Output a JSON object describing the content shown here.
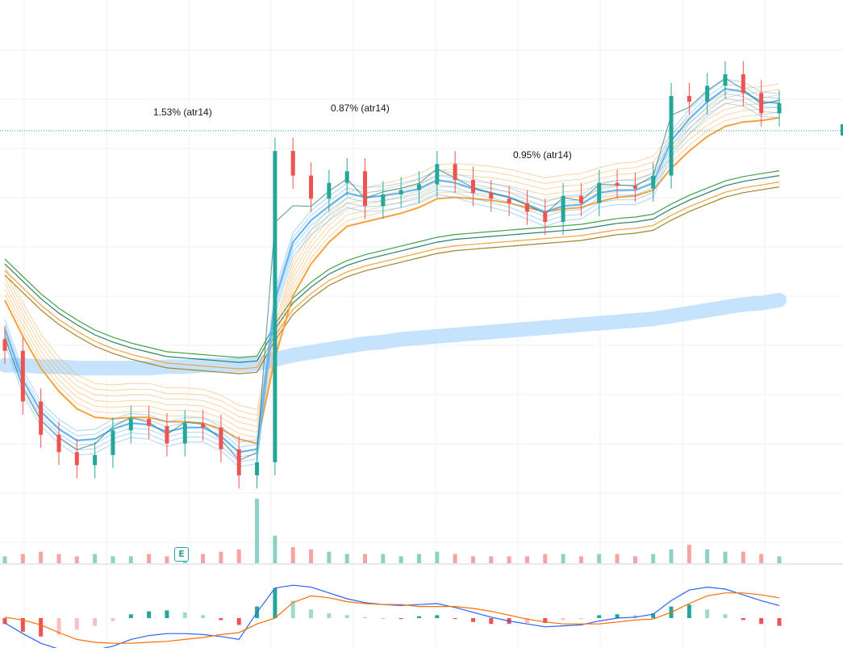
{
  "annotations": [
    {
      "text": "1.53% (atr14)"
    },
    {
      "text": "0.87% (atr14)"
    },
    {
      "text": "0.95% (atr14)"
    }
  ],
  "earnings_badge": "E",
  "colors": {
    "up": "#26a69a",
    "down": "#ef5350",
    "up_volume": "#8fd0c6",
    "down_volume": "#f5a3a3",
    "grid": "#eef0f3",
    "fast_ema": "#64b5f6",
    "slow_ema": "#f5a23c",
    "band": "#bbdefb",
    "macd_line": "#2962ff",
    "signal_line": "#ff6d00",
    "price_line": "#26a69a"
  },
  "chart_data": [
    {
      "type": "candlestick",
      "title": "",
      "xlabel": "",
      "ylabel": "",
      "grid": true,
      "series": [
        {
          "kind": "price",
          "values": [
            100.0,
            96.5,
            94.2,
            93.0,
            92.1,
            92.8,
            94.5,
            95.3,
            94.8,
            93.6,
            95.0,
            94.7,
            93.2,
            91.4,
            92.3,
            113.8,
            112.1,
            110.5,
            111.6,
            112.4,
            110.0,
            110.8,
            111.1,
            111.5,
            112.9,
            111.8,
            110.9,
            110.5,
            110.2,
            109.6,
            108.9,
            110.7,
            110.2,
            111.6,
            111.4,
            111.2,
            112.1,
            117.6,
            117.2,
            118.3,
            119.1,
            117.8,
            116.4,
            117.1
          ]
        },
        {
          "kind": "ema_fast_band",
          "values": [
            101.5,
            98.0,
            95.8,
            94.6,
            93.8,
            93.9,
            94.6,
            95.0,
            94.9,
            94.4,
            94.7,
            94.7,
            94.1,
            93.0,
            93.2,
            103.5,
            107.5,
            109.0,
            110.0,
            110.9,
            110.6,
            110.7,
            110.9,
            111.2,
            111.8,
            111.6,
            111.2,
            110.9,
            110.6,
            110.1,
            109.6,
            110.0,
            110.1,
            110.9,
            111.1,
            111.1,
            111.6,
            114.5,
            116.0,
            117.2,
            118.1,
            117.9,
            117.2,
            117.1
          ]
        },
        {
          "kind": "ema_slow_band",
          "values": [
            103.5,
            101.0,
            98.8,
            97.2,
            96.0,
            95.4,
            95.3,
            95.4,
            95.4,
            95.1,
            95.1,
            95.0,
            94.6,
            93.9,
            93.6,
            99.5,
            103.8,
            106.0,
            107.5,
            108.6,
            108.9,
            109.2,
            109.5,
            109.9,
            110.5,
            110.6,
            110.5,
            110.4,
            110.2,
            109.9,
            109.6,
            109.8,
            109.9,
            110.3,
            110.6,
            110.7,
            111.1,
            112.6,
            113.8,
            114.8,
            115.5,
            115.8,
            115.9,
            116.1
          ]
        },
        {
          "kind": "long_ema_band",
          "values": [
            106.0,
            104.8,
            103.6,
            102.6,
            101.8,
            101.1,
            100.6,
            100.2,
            99.9,
            99.6,
            99.5,
            99.4,
            99.3,
            99.2,
            99.3,
            101.5,
            103.3,
            104.4,
            105.3,
            105.9,
            106.3,
            106.6,
            106.9,
            107.2,
            107.5,
            107.7,
            107.8,
            107.9,
            108.0,
            108.1,
            108.2,
            108.3,
            108.4,
            108.6,
            108.8,
            108.9,
            109.1,
            109.8,
            110.4,
            110.9,
            111.4,
            111.7,
            111.9,
            112.1
          ]
        },
        {
          "kind": "baseline_band",
          "values": [
            99.0,
            99.0,
            98.9,
            98.9,
            98.8,
            98.8,
            98.8,
            98.8,
            98.8,
            98.9,
            98.9,
            99.0,
            99.0,
            99.0,
            99.1,
            99.4,
            99.7,
            99.9,
            100.1,
            100.3,
            100.5,
            100.6,
            100.8,
            100.9,
            101.0,
            101.1,
            101.2,
            101.3,
            101.4,
            101.5,
            101.6,
            101.7,
            101.8,
            101.9,
            102.0,
            102.1,
            102.2,
            102.4,
            102.6,
            102.8,
            103.0,
            103.2,
            103.3,
            103.5
          ]
        }
      ],
      "ylim": [
        88,
        122
      ]
    },
    {
      "type": "bar",
      "title": "",
      "series": [
        {
          "kind": "volume",
          "values": [
            3,
            4,
            5,
            4,
            3,
            4,
            3,
            3,
            4,
            3,
            3,
            4,
            5,
            6,
            28,
            12,
            7,
            6,
            5,
            4,
            4,
            4,
            3,
            4,
            5,
            4,
            3,
            3,
            3,
            3,
            4,
            4,
            3,
            4,
            4,
            3,
            4,
            6,
            8,
            6,
            5,
            5,
            4,
            3
          ]
        }
      ]
    },
    {
      "type": "bar",
      "title": "",
      "series": [
        {
          "kind": "macd_histogram",
          "values": [
            -0.6,
            -1.4,
            -1.9,
            -1.7,
            -1.2,
            -0.8,
            -0.3,
            0.4,
            0.7,
            0.8,
            0.6,
            0.3,
            -0.2,
            -0.7,
            1.2,
            3.1,
            1.8,
            0.9,
            0.5,
            0.3,
            0.1,
            0.0,
            -0.1,
            0.2,
            0.3,
            -0.1,
            -0.4,
            -0.6,
            -0.6,
            -0.5,
            -0.5,
            -0.2,
            -0.1,
            0.3,
            0.4,
            0.3,
            0.5,
            1.2,
            1.4,
            0.9,
            0.4,
            -0.2,
            -0.6,
            -0.8
          ]
        },
        {
          "kind": "macd",
          "values": [
            -0.5,
            -1.6,
            -2.6,
            -3.2,
            -3.4,
            -3.3,
            -2.9,
            -2.2,
            -1.8,
            -1.6,
            -1.6,
            -1.7,
            -1.9,
            -2.2,
            0.6,
            3.1,
            3.4,
            3.2,
            2.6,
            2.0,
            1.6,
            1.4,
            1.3,
            1.4,
            1.5,
            1.1,
            0.6,
            0.1,
            -0.3,
            -0.6,
            -0.9,
            -0.8,
            -0.7,
            -0.3,
            0.0,
            0.1,
            0.4,
            1.8,
            2.9,
            3.2,
            3.0,
            2.4,
            1.8,
            1.3
          ]
        },
        {
          "kind": "signal",
          "values": [
            0.1,
            -0.2,
            -0.7,
            -1.5,
            -2.2,
            -2.5,
            -2.6,
            -2.6,
            -2.5,
            -2.4,
            -2.2,
            -2.0,
            -1.7,
            -1.5,
            -0.6,
            0.0,
            1.6,
            2.3,
            2.1,
            1.7,
            1.5,
            1.4,
            1.4,
            1.2,
            1.2,
            1.2,
            1.0,
            0.7,
            0.3,
            -0.1,
            -0.4,
            -0.6,
            -0.6,
            -0.6,
            -0.4,
            -0.2,
            -0.1,
            0.6,
            1.5,
            2.3,
            2.6,
            2.6,
            2.4,
            2.1
          ]
        }
      ]
    }
  ]
}
